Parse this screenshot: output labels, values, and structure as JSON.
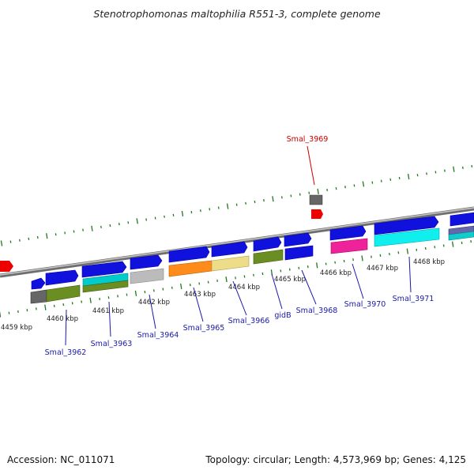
{
  "title": "Stenotrophomonas maltophilia R551-3, complete genome",
  "footer": {
    "accession": "Accession: NC_011071",
    "topology": "Topology: circular; Length: 4,573,969 bp; Genes: 4,125"
  },
  "kbp_labels": [
    "4459 kbp",
    "4460 kbp",
    "4461 kbp",
    "4462 kbp",
    "4463 kbp",
    "4464 kbp",
    "4465 kbp",
    "4466 kbp",
    "4467 kbp",
    "4468 kbp"
  ],
  "gene_labels": [
    "Smal_3962",
    "Smal_3963",
    "Smal_3964",
    "Smal_3965",
    "Smal_3966",
    "gidB",
    "Smal_3968",
    "Smal_3970",
    "Smal_3971"
  ],
  "highlight_gene": "Smal_3969",
  "colors": {
    "backbone": "#8c8c8c",
    "tick": "#1f7a1f",
    "gene_label": "#1a1aaa",
    "highlight_label": "#cc0000",
    "forward_gene": "#1111dd",
    "forward_gene_edge": "#0000aa"
  }
}
